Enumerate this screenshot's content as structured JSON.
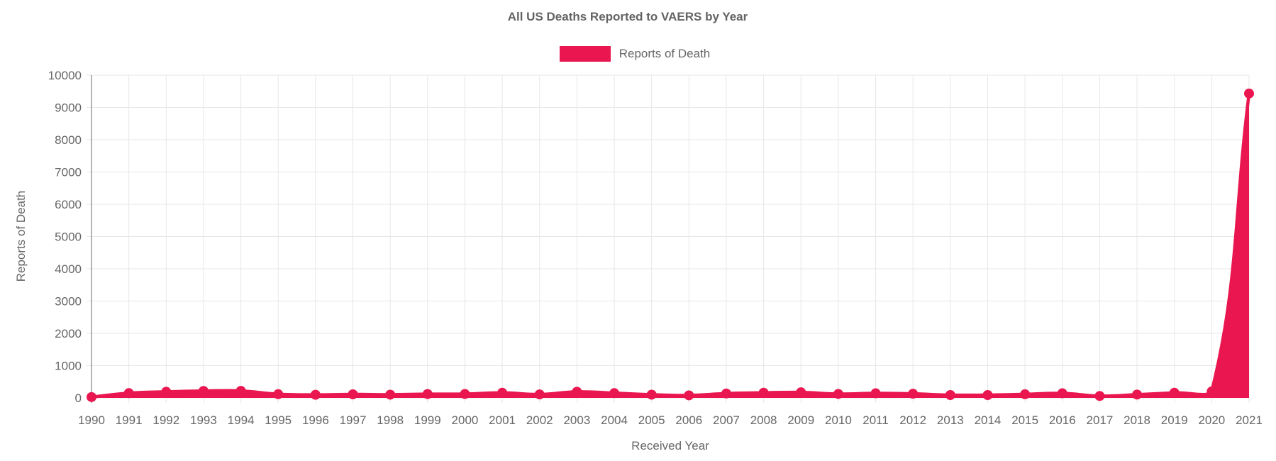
{
  "chart": {
    "title": "All US Deaths Reported to VAERS by Year",
    "legend_label": "Reports of Death",
    "xlabel": "Received Year",
    "ylabel": "Reports of Death"
  },
  "style": {
    "series_color": "#e9164f",
    "grid_color": "#e7e7e7",
    "axis_line_color": "#9b9b9b",
    "tick_text_color": "#666666",
    "title_color": "#636363",
    "background": "#ffffff"
  },
  "chart_data": {
    "type": "area",
    "title": "All US Deaths Reported to VAERS by Year",
    "xlabel": "Received Year",
    "ylabel": "Reports of Death",
    "legend_position": "top",
    "grid": true,
    "categories": [
      "1990",
      "1991",
      "1992",
      "1993",
      "1994",
      "1995",
      "1996",
      "1997",
      "1998",
      "1999",
      "2000",
      "2001",
      "2002",
      "2003",
      "2004",
      "2005",
      "2006",
      "2007",
      "2008",
      "2009",
      "2010",
      "2011",
      "2012",
      "2013",
      "2014",
      "2015",
      "2016",
      "2017",
      "2018",
      "2019",
      "2020",
      "2021"
    ],
    "series": [
      {
        "name": "Reports of Death",
        "values": [
          26,
          148,
          189,
          215,
          218,
          115,
          95,
          110,
          100,
          118,
          120,
          158,
          108,
          190,
          148,
          100,
          78,
          135,
          160,
          172,
          122,
          142,
          128,
          88,
          88,
          112,
          142,
          58,
          102,
          158,
          200,
          9432
        ]
      }
    ],
    "ylim": [
      0,
      10000
    ],
    "ytick_step": 1000,
    "point_radius": 7,
    "line_width": 4.5,
    "line_tension": 0.4
  }
}
